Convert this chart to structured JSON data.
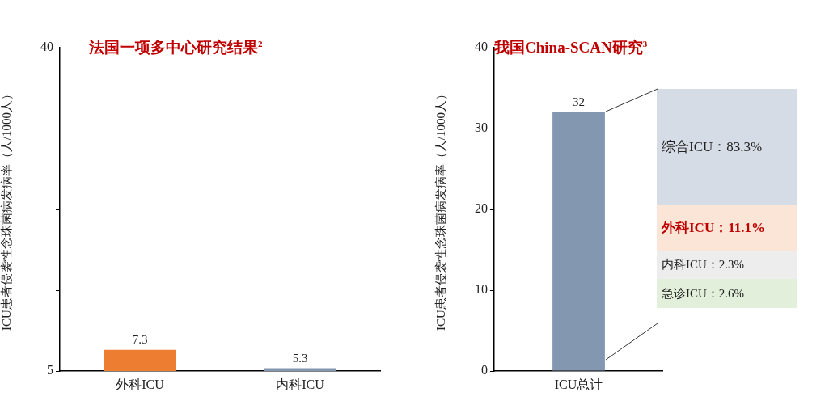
{
  "chart_data": [
    {
      "type": "bar",
      "title": "法国一项多中心研究结果$^{2}$",
      "ylabel": "ICU患者侵袭性念珠菌病发病率（人/1000人）",
      "categories": [
        "外科ICU",
        "内科ICU"
      ],
      "values": [
        7.3,
        5.3
      ],
      "colors": [
        "#ed7d31",
        "#8497b0"
      ],
      "ylim": [
        5,
        40
      ],
      "yticks": [
        5,
        {
          "value": 13.75,
          "label": null
        },
        {
          "value": 22.5,
          "label": null
        },
        {
          "value": 31.25,
          "label": null
        },
        40
      ],
      "data_labels": true,
      "grid": false,
      "legend": false
    },
    {
      "type": "bar",
      "title": "我国China-SCAN研究$^{3}$",
      "ylabel": "ICU患者侵袭性念珠菌病发病率（人/1000人）",
      "categories": [
        "ICU总计"
      ],
      "values": [
        32
      ],
      "colors": [
        "#8497b0"
      ],
      "ylim": [
        0,
        40
      ],
      "yticks": [
        0,
        10,
        20,
        30,
        40
      ],
      "data_labels": true,
      "grid": false,
      "legend": false,
      "annotations": [
        "综合ICU：83.3%",
        "外科ICU：11.1%",
        "内科ICU：2.3%",
        "急诊ICU：2.6%"
      ]
    }
  ]
}
